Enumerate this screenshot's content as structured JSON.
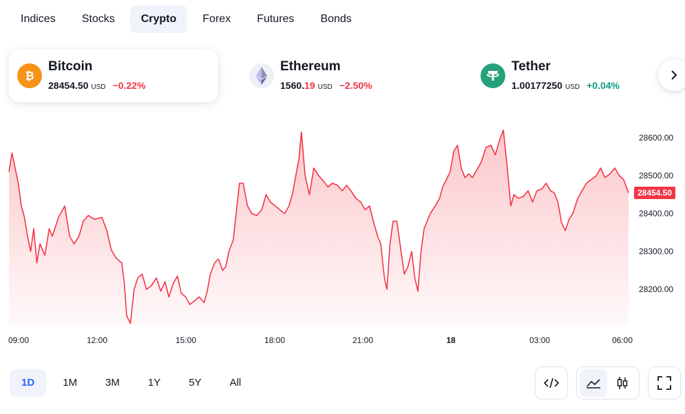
{
  "tabs": [
    {
      "label": "Indices",
      "active": false
    },
    {
      "label": "Stocks",
      "active": false
    },
    {
      "label": "Crypto",
      "active": true
    },
    {
      "label": "Forex",
      "active": false
    },
    {
      "label": "Futures",
      "active": false
    },
    {
      "label": "Bonds",
      "active": false
    }
  ],
  "cards": [
    {
      "name": "Bitcoin",
      "price_main": "28454.50",
      "price_dim": "",
      "currency": "USD",
      "change": "−0.22%",
      "direction": "down",
      "icon": "bitcoin-icon",
      "icon_color": "#f7931a",
      "active": true
    },
    {
      "name": "Ethereum",
      "price_main": "1560.",
      "price_dim": "19",
      "currency": "USD",
      "change": "−2.50%",
      "direction": "down",
      "icon": "ethereum-icon",
      "icon_color": "#627eea",
      "active": false
    },
    {
      "name": "Tether",
      "price_main": "1.00177250",
      "price_dim": "",
      "currency": "USD",
      "change": "+0.04%",
      "direction": "up",
      "icon": "tether-icon",
      "icon_color": "#26a17b",
      "active": false
    }
  ],
  "colors": {
    "line": "#f23645",
    "negative": "#f23645",
    "positive": "#089981",
    "active_range": "#2962ff"
  },
  "chart_data": {
    "type": "area",
    "series": [
      {
        "symbol": "Bitcoin"
      }
    ],
    "x_ticks": [
      "09:00",
      "12:00",
      "15:00",
      "18:00",
      "21:00",
      "18",
      "03:00",
      "06:00"
    ],
    "y_ticks": [
      28200,
      28300,
      28400,
      28500,
      28600
    ],
    "y_tick_labels": [
      "28200.00",
      "28300.00",
      "28400.00",
      "28500.00",
      "28600.00"
    ],
    "ylim": [
      28100,
      28650
    ],
    "last_value": 28454.5,
    "last_label": "28454.50",
    "grid": false,
    "points": [
      [
        0,
        28510
      ],
      [
        0.005,
        28560
      ],
      [
        0.015,
        28480
      ],
      [
        0.02,
        28420
      ],
      [
        0.025,
        28390
      ],
      [
        0.03,
        28340
      ],
      [
        0.035,
        28300
      ],
      [
        0.04,
        28360
      ],
      [
        0.045,
        28270
      ],
      [
        0.05,
        28320
      ],
      [
        0.058,
        28290
      ],
      [
        0.065,
        28360
      ],
      [
        0.07,
        28340
      ],
      [
        0.08,
        28390
      ],
      [
        0.09,
        28420
      ],
      [
        0.098,
        28340
      ],
      [
        0.105,
        28320
      ],
      [
        0.113,
        28340
      ],
      [
        0.12,
        28380
      ],
      [
        0.128,
        28395
      ],
      [
        0.138,
        28385
      ],
      [
        0.15,
        28390
      ],
      [
        0.158,
        28355
      ],
      [
        0.165,
        28305
      ],
      [
        0.172,
        28285
      ],
      [
        0.178,
        28275
      ],
      [
        0.182,
        28270
      ],
      [
        0.186,
        28220
      ],
      [
        0.19,
        28130
      ],
      [
        0.196,
        28110
      ],
      [
        0.202,
        28200
      ],
      [
        0.208,
        28230
      ],
      [
        0.215,
        28240
      ],
      [
        0.222,
        28200
      ],
      [
        0.23,
        28210
      ],
      [
        0.238,
        28230
      ],
      [
        0.245,
        28195
      ],
      [
        0.252,
        28220
      ],
      [
        0.258,
        28180
      ],
      [
        0.265,
        28215
      ],
      [
        0.272,
        28235
      ],
      [
        0.278,
        28190
      ],
      [
        0.285,
        28180
      ],
      [
        0.292,
        28160
      ],
      [
        0.3,
        28170
      ],
      [
        0.307,
        28180
      ],
      [
        0.315,
        28165
      ],
      [
        0.32,
        28195
      ],
      [
        0.325,
        28240
      ],
      [
        0.332,
        28270
      ],
      [
        0.338,
        28280
      ],
      [
        0.345,
        28250
      ],
      [
        0.35,
        28260
      ],
      [
        0.355,
        28300
      ],
      [
        0.362,
        28330
      ],
      [
        0.368,
        28420
      ],
      [
        0.372,
        28480
      ],
      [
        0.378,
        28480
      ],
      [
        0.385,
        28420
      ],
      [
        0.392,
        28400
      ],
      [
        0.4,
        28395
      ],
      [
        0.408,
        28410
      ],
      [
        0.415,
        28450
      ],
      [
        0.422,
        28430
      ],
      [
        0.43,
        28420
      ],
      [
        0.437,
        28410
      ],
      [
        0.445,
        28400
      ],
      [
        0.452,
        28420
      ],
      [
        0.458,
        28455
      ],
      [
        0.463,
        28500
      ],
      [
        0.468,
        28545
      ],
      [
        0.472,
        28615
      ],
      [
        0.478,
        28500
      ],
      [
        0.485,
        28450
      ],
      [
        0.492,
        28520
      ],
      [
        0.5,
        28500
      ],
      [
        0.508,
        28485
      ],
      [
        0.515,
        28470
      ],
      [
        0.522,
        28480
      ],
      [
        0.53,
        28475
      ],
      [
        0.538,
        28460
      ],
      [
        0.545,
        28475
      ],
      [
        0.552,
        28460
      ],
      [
        0.56,
        28440
      ],
      [
        0.568,
        28430
      ],
      [
        0.575,
        28410
      ],
      [
        0.582,
        28420
      ],
      [
        0.588,
        28380
      ],
      [
        0.595,
        28340
      ],
      [
        0.6,
        28320
      ],
      [
        0.606,
        28230
      ],
      [
        0.61,
        28200
      ],
      [
        0.615,
        28320
      ],
      [
        0.62,
        28380
      ],
      [
        0.626,
        28380
      ],
      [
        0.632,
        28310
      ],
      [
        0.638,
        28240
      ],
      [
        0.644,
        28260
      ],
      [
        0.65,
        28300
      ],
      [
        0.655,
        28230
      ],
      [
        0.66,
        28195
      ],
      [
        0.665,
        28300
      ],
      [
        0.67,
        28360
      ],
      [
        0.675,
        28380
      ],
      [
        0.68,
        28400
      ],
      [
        0.688,
        28420
      ],
      [
        0.695,
        28440
      ],
      [
        0.7,
        28470
      ],
      [
        0.706,
        28490
      ],
      [
        0.712,
        28510
      ],
      [
        0.718,
        28565
      ],
      [
        0.724,
        28580
      ],
      [
        0.73,
        28520
      ],
      [
        0.736,
        28495
      ],
      [
        0.742,
        28505
      ],
      [
        0.748,
        28495
      ],
      [
        0.755,
        28515
      ],
      [
        0.762,
        28535
      ],
      [
        0.77,
        28575
      ],
      [
        0.778,
        28580
      ],
      [
        0.785,
        28555
      ],
      [
        0.792,
        28595
      ],
      [
        0.798,
        28620
      ],
      [
        0.804,
        28525
      ],
      [
        0.81,
        28420
      ],
      [
        0.815,
        28450
      ],
      [
        0.822,
        28440
      ],
      [
        0.83,
        28445
      ],
      [
        0.838,
        28460
      ],
      [
        0.845,
        28430
      ],
      [
        0.852,
        28460
      ],
      [
        0.86,
        28465
      ],
      [
        0.867,
        28480
      ],
      [
        0.874,
        28460
      ],
      [
        0.88,
        28455
      ],
      [
        0.886,
        28430
      ],
      [
        0.892,
        28375
      ],
      [
        0.898,
        28355
      ],
      [
        0.904,
        28385
      ],
      [
        0.91,
        28400
      ],
      [
        0.918,
        28440
      ],
      [
        0.925,
        28460
      ],
      [
        0.932,
        28480
      ],
      [
        0.94,
        28490
      ],
      [
        0.948,
        28500
      ],
      [
        0.955,
        28520
      ],
      [
        0.962,
        28495
      ],
      [
        0.97,
        28505
      ],
      [
        0.978,
        28520
      ],
      [
        0.985,
        28500
      ],
      [
        0.992,
        28490
      ],
      [
        1,
        28454.5
      ]
    ]
  },
  "ranges": [
    {
      "label": "1D",
      "active": true
    },
    {
      "label": "1M",
      "active": false
    },
    {
      "label": "3M",
      "active": false
    },
    {
      "label": "1Y",
      "active": false
    },
    {
      "label": "5Y",
      "active": false
    },
    {
      "label": "All",
      "active": false
    }
  ],
  "tools": {
    "embed": "embed-code-icon",
    "area": "area-chart-icon",
    "candles": "candlestick-icon",
    "fullscreen": "fullscreen-icon"
  }
}
